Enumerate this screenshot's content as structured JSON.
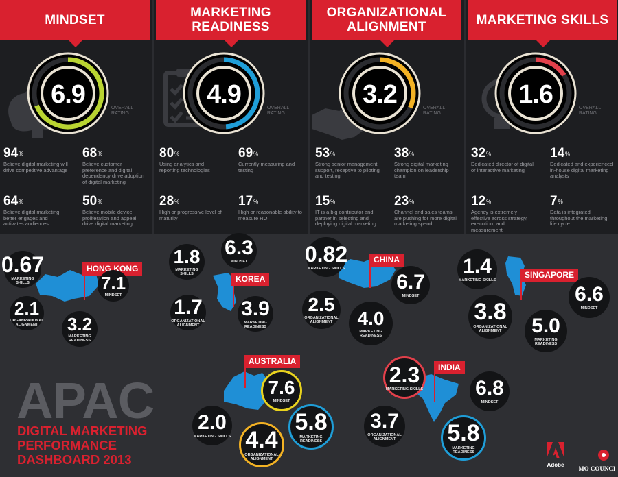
{
  "chart_data": {
    "type": "dashboard",
    "title": "APAC",
    "subtitle": "DIGITAL MARKETING PERFORMANCE DASHBOARD 2013",
    "rating_scale": [
      0,
      10
    ],
    "rating_label": "OVERALL RATING",
    "categories": [
      {
        "name": "MINDSET",
        "rating": 6.9,
        "ring_color": "#b9d431",
        "icon": "brain-icon",
        "stats": [
          {
            "value": 94,
            "unit": "%",
            "text": "Believe digital marketing will drive competitive advantage"
          },
          {
            "value": 68,
            "unit": "%",
            "text": "Believe customer preference and digital dependency drive adoption of digital marketing"
          },
          {
            "value": 64,
            "unit": "%",
            "text": "Believe digital marketing better engages and activates audiences"
          },
          {
            "value": 50,
            "unit": "%",
            "text": "Believe mobile device proliferation and appeal drive digital marketing"
          }
        ]
      },
      {
        "name": "MARKETING READINESS",
        "rating": 4.9,
        "ring_color": "#1f9ed8",
        "icon": "checklist-icon",
        "stats": [
          {
            "value": 80,
            "unit": "%",
            "text": "Using analytics and reporting technologies"
          },
          {
            "value": 69,
            "unit": "%",
            "text": "Currently measuring and testing"
          },
          {
            "value": 28,
            "unit": "%",
            "text": "High or progressive level of maturity"
          },
          {
            "value": 17,
            "unit": "%",
            "text": "High or reasonable ability to measure ROI"
          }
        ]
      },
      {
        "name": "ORGANIZATIONAL ALIGNMENT",
        "rating": 3.2,
        "ring_color": "#f3b224",
        "icon": "handshake-icon",
        "stats": [
          {
            "value": 53,
            "unit": "%",
            "text": "Strong senior management support, receptive to piloting and testing"
          },
          {
            "value": 38,
            "unit": "%",
            "text": "Strong digital marketing champion on leadership team"
          },
          {
            "value": 15,
            "unit": "%",
            "text": "IT is a big contributor and partner in selecting and deploying digital marketing"
          },
          {
            "value": 23,
            "unit": "%",
            "text": "Channel and sales teams are pushing for more digital marketing spend"
          }
        ]
      },
      {
        "name": "MARKETING SKILLS",
        "rating": 1.6,
        "ring_color": "#e2404b",
        "icon": "lightbulb-icon",
        "stats": [
          {
            "value": 32,
            "unit": "%",
            "text": "Dedicated director of digital or interactive marketing"
          },
          {
            "value": 14,
            "unit": "%",
            "text": "Dedicated and experienced in-house digital marketing analysts"
          },
          {
            "value": 12,
            "unit": "%",
            "text": "Agency is extremely effective across strategy, execution, and measurement"
          },
          {
            "value": 7,
            "unit": "%",
            "text": "Data is integrated throughout the marketing life cycle"
          }
        ]
      }
    ],
    "countries": [
      {
        "name": "HONG KONG",
        "mindset": 7.1,
        "marketing_readiness": 3.2,
        "organizational_alignment": 2.1,
        "marketing_skills": 0.67
      },
      {
        "name": "KOREA",
        "mindset": 6.3,
        "marketing_readiness": 3.9,
        "organizational_alignment": 1.7,
        "marketing_skills": 1.8
      },
      {
        "name": "CHINA",
        "mindset": 6.7,
        "marketing_readiness": 4.0,
        "organizational_alignment": 2.5,
        "marketing_skills": 0.82
      },
      {
        "name": "SINGAPORE",
        "mindset": 6.6,
        "marketing_readiness": 5.0,
        "organizational_alignment": 3.8,
        "marketing_skills": 1.4
      },
      {
        "name": "AUSTRALIA",
        "mindset": 7.6,
        "marketing_readiness": 5.8,
        "organizational_alignment": 4.4,
        "marketing_skills": 2.0
      },
      {
        "name": "INDIA",
        "mindset": 6.8,
        "marketing_readiness": 5.8,
        "organizational_alignment": 3.7,
        "marketing_skills": 2.3
      }
    ],
    "metric_labels": {
      "mindset": "MINDSET",
      "marketing_readiness": "MARKETING READINESS",
      "organizational_alignment": "ORGANIZATIONAL ALIGNMENT",
      "marketing_skills": "MARKETING SKILLS"
    },
    "highlight_colors": {
      "mindset": "#e9d31e",
      "marketing_readiness": "#1f9ed8",
      "organizational_alignment": "#f3b224",
      "marketing_skills": "#e2404b"
    }
  },
  "logos": {
    "adobe": "Adobe",
    "cmo": "CMO COUNCIL"
  },
  "colors": {
    "brand_red": "#d9212f",
    "map_blue": "#1f8fd6",
    "background": "#2e2f33"
  }
}
